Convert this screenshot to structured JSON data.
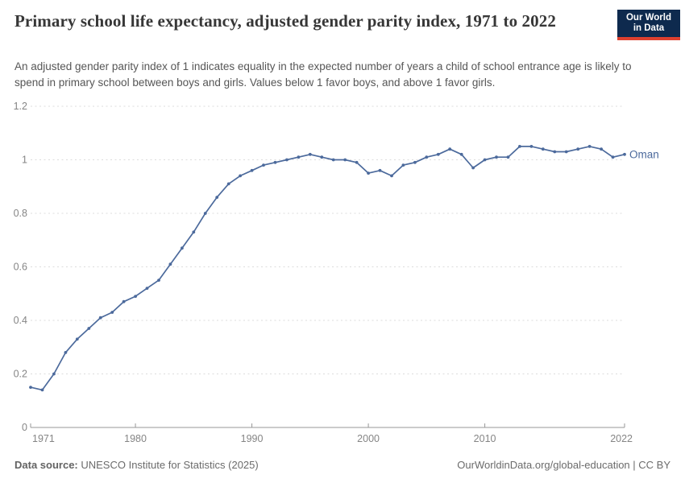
{
  "header": {
    "title": "Primary school life expectancy, adjusted gender parity index, 1971 to 2022",
    "logo": {
      "line1": "Our World",
      "line2": "in Data",
      "bg_color": "#0E2A4E",
      "accent_color": "#DE402F"
    }
  },
  "subtitle": "An adjusted gender parity index of 1 indicates equality in the expected number of years a child of school entrance age is likely to spend in primary school between boys and girls. Values below 1 favor boys, and above 1 favor girls.",
  "chart_data": {
    "type": "line",
    "title": "Primary school life expectancy, adjusted gender parity index, 1971 to 2022",
    "xlabel": "",
    "ylabel": "",
    "xlim": [
      1971,
      2022
    ],
    "ylim": [
      0,
      1.2
    ],
    "x_ticks": [
      1971,
      1980,
      1990,
      2000,
      2010,
      2022
    ],
    "y_ticks": [
      0,
      0.2,
      0.4,
      0.6,
      0.8,
      1,
      1.2
    ],
    "y_tick_labels": [
      "0",
      "0.2",
      "0.4",
      "0.6",
      "0.8",
      "1",
      "1.2"
    ],
    "grid": "horizontal-dashed",
    "legend_position": "end-of-line-label",
    "colors": {
      "grid": "#dcdcdc",
      "axis": "#979797",
      "tick_text": "#858585"
    },
    "series": [
      {
        "name": "Oman",
        "color": "#4C6A9C",
        "x": [
          1971,
          1972,
          1973,
          1974,
          1975,
          1976,
          1977,
          1978,
          1979,
          1980,
          1981,
          1982,
          1983,
          1984,
          1985,
          1986,
          1987,
          1988,
          1989,
          1990,
          1991,
          1992,
          1993,
          1994,
          1995,
          1996,
          1997,
          1998,
          1999,
          2000,
          2001,
          2002,
          2003,
          2004,
          2005,
          2006,
          2007,
          2008,
          2009,
          2010,
          2011,
          2012,
          2013,
          2014,
          2015,
          2016,
          2017,
          2018,
          2019,
          2020,
          2021,
          2022
        ],
        "values": [
          0.15,
          0.14,
          0.2,
          0.28,
          0.33,
          0.37,
          0.41,
          0.43,
          0.47,
          0.49,
          0.52,
          0.55,
          0.61,
          0.67,
          0.73,
          0.8,
          0.86,
          0.91,
          0.94,
          0.96,
          0.98,
          0.99,
          1.0,
          1.01,
          1.02,
          1.01,
          1.0,
          1.0,
          0.99,
          0.95,
          0.96,
          0.94,
          0.98,
          0.99,
          1.01,
          1.02,
          1.04,
          1.02,
          0.97,
          1.0,
          1.01,
          1.01,
          1.05,
          1.05,
          1.04,
          1.03,
          1.03,
          1.04,
          1.05,
          1.04,
          1.01,
          1.02
        ]
      }
    ]
  },
  "footer": {
    "source_label": "Data source:",
    "source_text": " UNESCO Institute for Statistics (2025)",
    "credit": "OurWorldinData.org/global-education | CC BY"
  }
}
